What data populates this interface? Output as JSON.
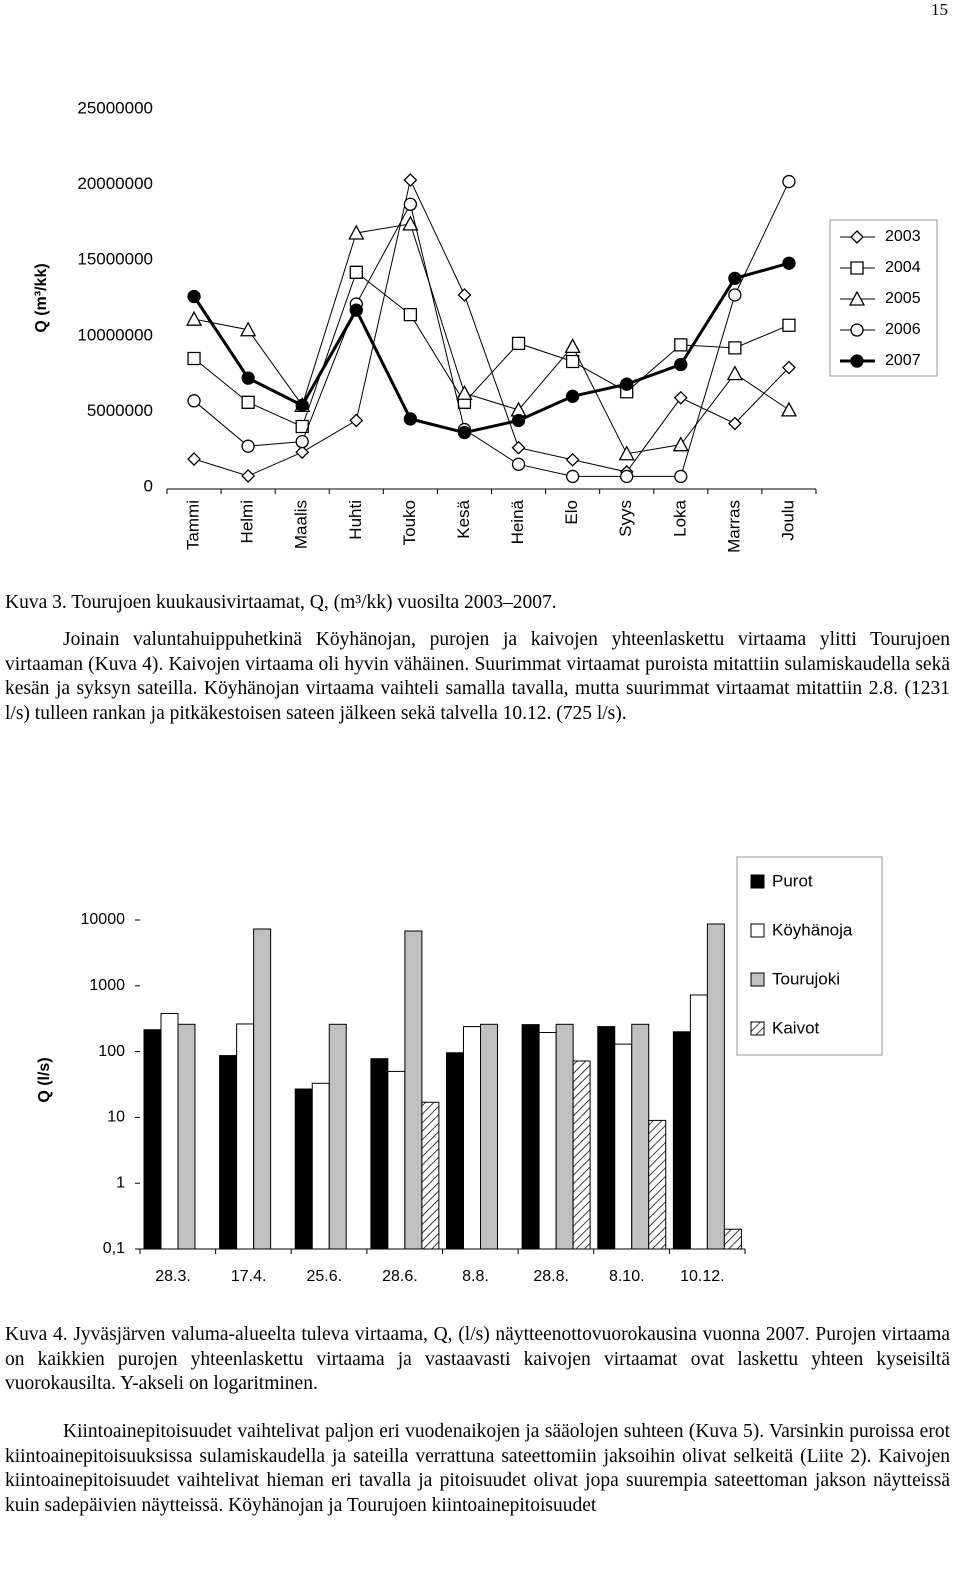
{
  "page_number": "15",
  "chart_data": [
    {
      "type": "line",
      "ylabel": "Q (m³/kk)",
      "categories": [
        "Tammi",
        "Helmi",
        "Maalis",
        "Huhti",
        "Touko",
        "Kesä",
        "Heinä",
        "Elo",
        "Syys",
        "Loka",
        "Marras",
        "Joulu"
      ],
      "series": [
        {
          "name": "2003",
          "color": "#000000",
          "marker": "diamond",
          "marker_fill": "#ffffff",
          "values": [
            1850000,
            730000,
            2300000,
            4400000,
            20300000,
            12700000,
            2600000,
            1800000,
            1000000,
            5900000,
            4200000,
            7900000
          ]
        },
        {
          "name": "2004",
          "color": "#000000",
          "marker": "square",
          "marker_fill": "#ffffff",
          "values": [
            8500000,
            5600000,
            4000000,
            14200000,
            11400000,
            5600000,
            9500000,
            8300000,
            6300000,
            9400000,
            9200000,
            10700000
          ]
        },
        {
          "name": "2005",
          "color": "#000000",
          "marker": "triangle",
          "marker_fill": "#ffffff",
          "values": [
            11100000,
            10400000,
            5400000,
            16800000,
            17400000,
            6200000,
            5100000,
            9300000,
            2200000,
            2800000,
            7500000,
            5100000
          ]
        },
        {
          "name": "2006",
          "color": "#000000",
          "marker": "circle",
          "marker_fill": "#ffffff",
          "values": [
            5700000,
            2700000,
            3000000,
            12100000,
            18700000,
            3800000,
            1500000,
            700000,
            700000,
            700000,
            12700000,
            20200000
          ]
        },
        {
          "name": "2007",
          "color": "#000000",
          "marker": "circle",
          "marker_fill": "#000000",
          "values": [
            12600000,
            7200000,
            5400000,
            11700000,
            4500000,
            3600000,
            4400000,
            6000000,
            6800000,
            8100000,
            13800000,
            14800000
          ]
        }
      ],
      "ylim": [
        0,
        25000000
      ],
      "yticks": [
        0,
        5000000,
        10000000,
        15000000,
        20000000,
        25000000
      ],
      "grid": false,
      "legend": "right"
    },
    {
      "type": "bar",
      "ylabel": "Q (l/s)",
      "log_scale": true,
      "categories": [
        "28.3.",
        "17.4.",
        "25.6.",
        "28.6.",
        "8.8.",
        "28.8.",
        "8.10.",
        "10.12."
      ],
      "series": [
        {
          "name": "Purot",
          "color": "#000000",
          "values": [
            215,
            87,
            27,
            78,
            96,
            257,
            240,
            200
          ]
        },
        {
          "name": "Köyhänoja",
          "color": "#ffffff",
          "values": [
            380,
            263,
            33,
            50,
            240,
            195,
            130,
            725
          ]
        },
        {
          "name": "Tourujoki",
          "color": "#c0c0c0",
          "values": [
            260,
            7300,
            260,
            6800,
            260,
            260,
            260,
            8700
          ]
        },
        {
          "name": "Kaivot",
          "color": "#ffffff",
          "pattern": "hatch",
          "values": [
            null,
            null,
            null,
            17,
            null,
            72,
            9,
            0.2
          ]
        }
      ],
      "ylim": [
        0.1,
        10000
      ],
      "yticks": [
        {
          "value": 0.1,
          "label": "0,1"
        },
        1,
        10,
        100,
        1000,
        10000
      ],
      "grid": false,
      "legend": "right"
    }
  ],
  "captions": [
    "Kuva 3. Tourujoen kuukausivirtaamat, Q, (m³/kk) vuosilta 2003–2007.",
    "Kuva 4. Jyväsjärven valuma-alueelta tuleva virtaama, Q, (l/s) näytteenottovuorokausina vuonna 2007. Purojen virtaama on kaikkien purojen yhteenlaskettu virtaama ja vastaavasti kaivojen virtaamat ovat laskettu yhteen kyseisiltä vuorokausilta. Y-akseli on logaritminen."
  ],
  "paragraphs": [
    "Joinain valuntahuippuhetkinä Köyhänojan, purojen ja kaivojen yhteenlaskettu virtaama ylitti Tourujoen virtaaman (Kuva 4). Kaivojen virtaama oli hyvin vähäinen. Suurimmat virtaamat puroista mitattiin sulamiskaudella sekä kesän ja syksyn sateilla. Köyhänojan virtaama vaihteli samalla tavalla, mutta suurimmat virtaamat mitattiin 2.8. (1231 l/s) tulleen rankan ja pitkäkestoisen sateen jälkeen sekä talvella 10.12. (725 l/s).",
    "Kiintoainepitoisuudet vaihtelivat paljon eri vuodenaikojen ja sääolojen suhteen (Kuva 5). Varsinkin puroissa erot kiintoainepitoisuuksissa sulamiskaudella ja sateilla verrattuna sateettomiin jaksoihin olivat selkeitä (Liite 2). Kaivojen kiintoainepitoisuudet vaihtelivat hieman eri tavalla ja pitoisuudet olivat jopa suurempia sateettoman jakson näytteissä kuin sadepäivien näytteissä. Köyhänojan ja Tourujoen kiintoainepitoisuudet"
  ]
}
